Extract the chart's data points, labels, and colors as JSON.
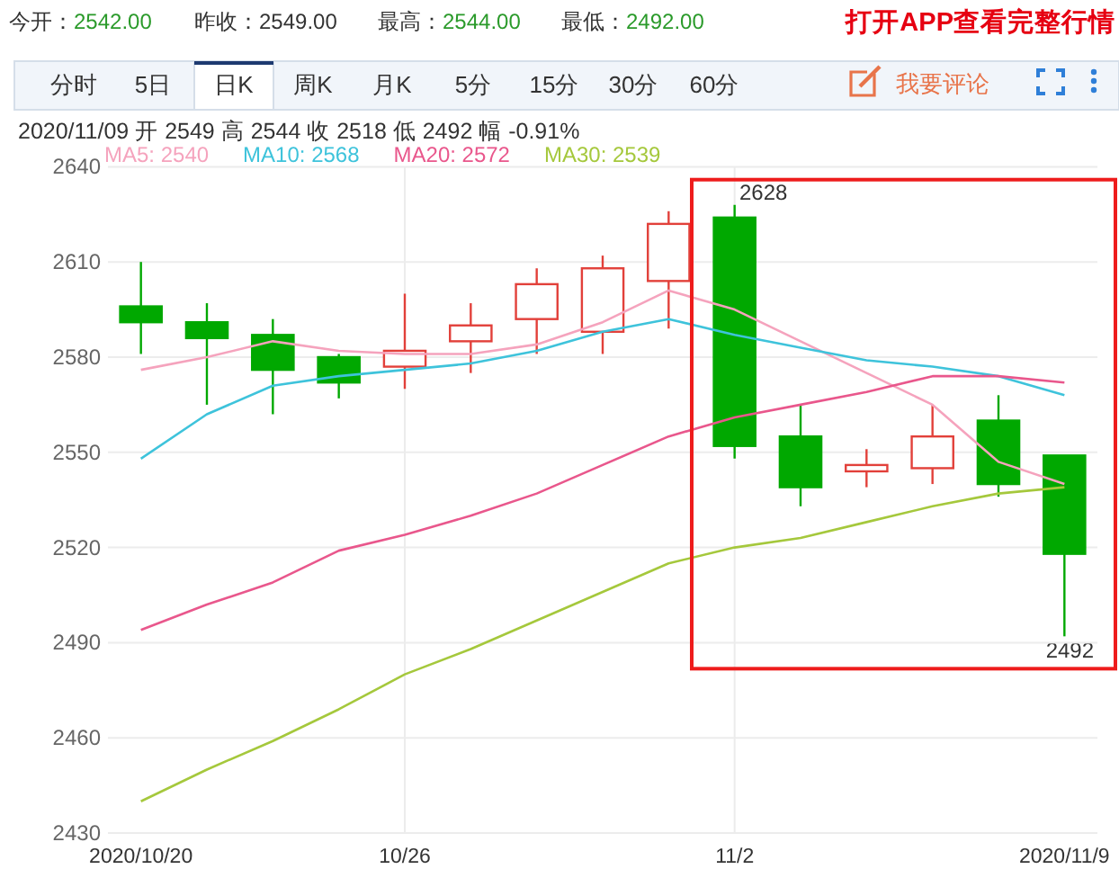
{
  "chart_data": {
    "type": "candlestick",
    "categories": [
      "2020/10/20",
      null,
      null,
      null,
      "10/26",
      null,
      null,
      null,
      null,
      "11/2",
      null,
      null,
      null,
      null,
      "2020/11/9"
    ],
    "ohlc": [
      [
        2596,
        2610,
        2581,
        2591
      ],
      [
        2591,
        2597,
        2565,
        2586
      ],
      [
        2587,
        2592,
        2562,
        2576
      ],
      [
        2580,
        2581,
        2567,
        2572
      ],
      [
        2577,
        2600,
        2570,
        2582
      ],
      [
        2585,
        2597,
        2575,
        2590
      ],
      [
        2592,
        2608,
        2581,
        2603
      ],
      [
        2588,
        2612,
        2581,
        2608
      ],
      [
        2604,
        2626,
        2589,
        2622
      ],
      [
        2624,
        2628,
        2548,
        2552
      ],
      [
        2555,
        2565,
        2533,
        2539
      ],
      [
        2544,
        2551,
        2539,
        2546
      ],
      [
        2545,
        2565,
        2540,
        2555
      ],
      [
        2560,
        2568,
        2536,
        2540
      ],
      [
        2549,
        2549,
        2492,
        2518
      ]
    ],
    "colors": [
      "#00a800",
      "#00a800",
      "#00a800",
      "#00a800",
      "#e2403a",
      "#e2403a",
      "#e2403a",
      "#e2403a",
      "#e2403a",
      "#00a800",
      "#00a800",
      "#e2403a",
      "#e2403a",
      "#00a800",
      "#00a800"
    ],
    "series": [
      {
        "name": "MA5: 2540",
        "type": "line",
        "color": "#f5a3bd",
        "values": [
          2576,
          2580,
          2585,
          2582,
          2581,
          2581,
          2584,
          2591,
          2601,
          2595,
          2585,
          2575,
          2565,
          2547,
          2540
        ]
      },
      {
        "name": "MA10: 2568",
        "type": "line",
        "color": "#3ec3db",
        "values": [
          2548,
          2562,
          2571,
          2574,
          2576,
          2578,
          2582,
          2588,
          2592,
          2587,
          2583,
          2579,
          2577,
          2574,
          2568
        ]
      },
      {
        "name": "MA20: 2572",
        "type": "line",
        "color": "#e9578c",
        "values": [
          2494,
          2502,
          2509,
          2519,
          2524,
          2530,
          2537,
          2546,
          2555,
          2561,
          2565,
          2569,
          2574,
          2574,
          2572
        ]
      },
      {
        "name": "MA30: 2539",
        "type": "line",
        "color": "#a5c83c",
        "values": [
          2440,
          2450,
          2459,
          2469,
          2480,
          2488,
          2497,
          2506,
          2515,
          2520,
          2523,
          2528,
          2533,
          2537,
          2539
        ]
      }
    ],
    "ylim": [
      2430,
      2640
    ],
    "yticks": [
      2430,
      2460,
      2490,
      2520,
      2550,
      2580,
      2610,
      2640
    ],
    "grid": true,
    "legend": "top left",
    "annotations": [
      "今开：",
      "2542.00",
      "昨收：",
      "2549.00",
      "最高：",
      "2544.00",
      "最低：",
      "2492.00",
      "打开APP查看完整行情",
      "分时",
      "5日",
      "日K",
      "周K",
      "月K",
      "5分",
      "15分",
      "30分",
      "60分",
      "我要评论",
      "2020/11/09 开 2549 高 2544 收 2518 低 2492 幅 -0.91%",
      {
        "text": "2628",
        "x": "11/2",
        "y": 2628
      },
      {
        "text": "2492",
        "x": "2020/11/9",
        "y": 2492
      }
    ]
  }
}
